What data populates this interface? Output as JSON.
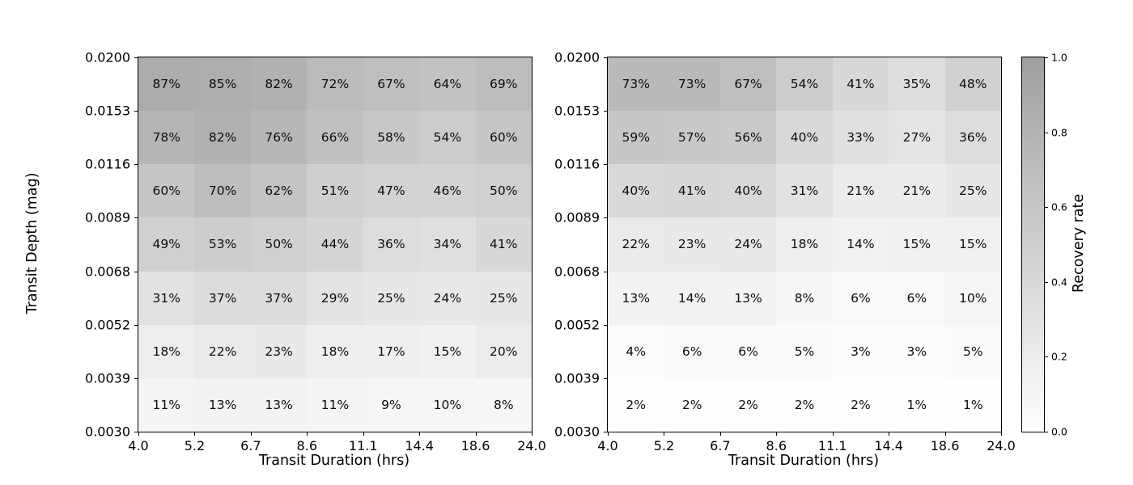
{
  "figure": {
    "background": "#ffffff",
    "text_color": "#0d0d0d"
  },
  "chart_data": {
    "type": "heatmap",
    "value_unit": "%",
    "grid": false,
    "legend": false,
    "x_ticks": [
      "4.0",
      "5.2",
      "6.7",
      "8.6",
      "11.1",
      "14.4",
      "18.6",
      "24.0"
    ],
    "y_ticks": [
      "0.0200",
      "0.0153",
      "0.0116",
      "0.0089",
      "0.0068",
      "0.0052",
      "0.0039",
      "0.0030"
    ],
    "xlabel": "Transit Duration (hrs)",
    "ylabel": "Transit Depth (mag)",
    "panels": [
      {
        "name": "left-heatmap",
        "values_percent": [
          [
            87,
            85,
            82,
            72,
            67,
            64,
            69
          ],
          [
            78,
            82,
            76,
            66,
            58,
            54,
            60
          ],
          [
            60,
            70,
            62,
            51,
            47,
            46,
            50
          ],
          [
            49,
            53,
            50,
            44,
            36,
            34,
            41
          ],
          [
            31,
            37,
            37,
            29,
            25,
            24,
            25
          ],
          [
            18,
            22,
            23,
            18,
            17,
            15,
            20
          ],
          [
            11,
            13,
            13,
            11,
            9,
            10,
            8
          ]
        ]
      },
      {
        "name": "right-heatmap",
        "values_percent": [
          [
            73,
            73,
            67,
            54,
            41,
            35,
            48
          ],
          [
            59,
            57,
            56,
            40,
            33,
            27,
            36
          ],
          [
            40,
            41,
            40,
            31,
            21,
            21,
            25
          ],
          [
            22,
            23,
            24,
            18,
            14,
            15,
            15
          ],
          [
            13,
            14,
            13,
            8,
            6,
            6,
            10
          ],
          [
            4,
            6,
            6,
            5,
            3,
            3,
            5
          ],
          [
            2,
            2,
            2,
            2,
            2,
            1,
            1
          ]
        ]
      }
    ],
    "colorbar": {
      "label": "Recovery rate",
      "ticks": [
        "1.0",
        "0.8",
        "0.6",
        "0.4",
        "0.2",
        "0.0"
      ],
      "range": [
        0.0,
        1.0
      ],
      "color_min": "#ffffff",
      "color_max": "#a0a0a0"
    }
  }
}
